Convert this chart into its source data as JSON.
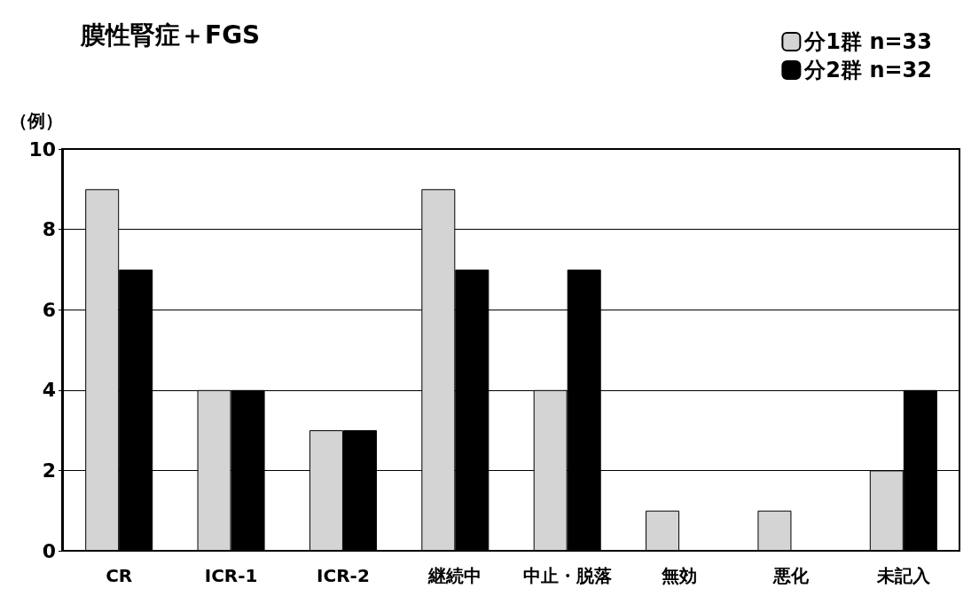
{
  "chart_data": {
    "type": "bar",
    "title": "膜性腎症＋FGS",
    "ylabel": "（例）",
    "categories": [
      "CR",
      "ICR-1",
      "ICR-2",
      "継続中",
      "中止・脱落",
      "無効",
      "悪化",
      "未記入"
    ],
    "series": [
      {
        "name": "分1群 n=33",
        "color": "#d4d4d4",
        "values": [
          9,
          4,
          3,
          9,
          4,
          1,
          1,
          2
        ]
      },
      {
        "name": "分2群 n=32",
        "color": "#000000",
        "values": [
          7,
          4,
          3,
          7,
          7,
          0,
          0,
          4
        ]
      }
    ],
    "ylim": [
      0,
      10
    ],
    "yticks": [
      0,
      2,
      4,
      6,
      8,
      10
    ],
    "grid": "y",
    "legend": "top right"
  }
}
